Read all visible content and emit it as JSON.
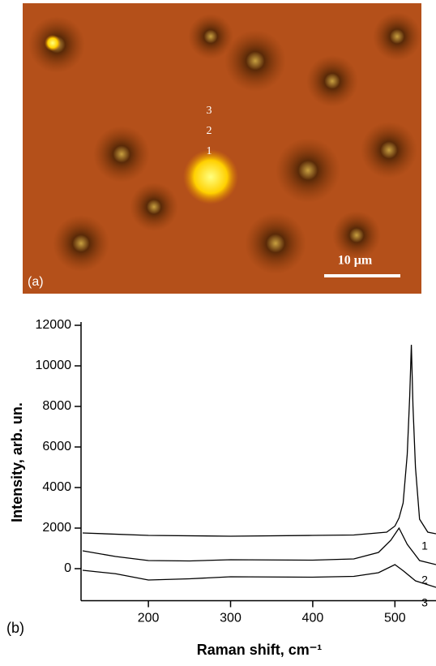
{
  "micrograph": {
    "panel_label": "(a)",
    "point_labels": [
      "3",
      "2",
      "1"
    ],
    "scale_bar": "10 μm"
  },
  "panel_label": "(b)",
  "chart_data": {
    "type": "line",
    "x_label": "Raman shift, cm⁻¹",
    "y_label": "Intensity, arb. un.",
    "xlim": [
      120,
      550
    ],
    "xticks": [
      200,
      300,
      400,
      500
    ],
    "ylim": [
      -1500,
      12000
    ],
    "yticks": [
      0,
      2000,
      4000,
      6000,
      8000,
      10000,
      12000
    ],
    "series": [
      {
        "name": "1",
        "color": "#000000",
        "x": [
          120,
          200,
          300,
          400,
          450,
          490,
          500,
          505,
          510,
          515,
          518,
          520,
          522,
          525,
          530,
          540,
          550
        ],
        "values": [
          1760,
          1640,
          1600,
          1640,
          1660,
          1800,
          2100,
          2500,
          3240,
          5640,
          8500,
          11040,
          8000,
          5000,
          2440,
          1800,
          1720
        ]
      },
      {
        "name": "2",
        "color": "#000000",
        "x": [
          120,
          160,
          200,
          250,
          300,
          400,
          450,
          480,
          495,
          505,
          515,
          530,
          550
        ],
        "values": [
          880,
          600,
          400,
          380,
          440,
          420,
          480,
          800,
          1400,
          2000,
          1200,
          400,
          200
        ]
      },
      {
        "name": "3",
        "color": "#000000",
        "x": [
          120,
          160,
          200,
          250,
          300,
          400,
          450,
          480,
          500,
          510,
          525,
          550
        ],
        "values": [
          -80,
          -250,
          -560,
          -500,
          -400,
          -420,
          -380,
          -200,
          200,
          -100,
          -600,
          -920
        ]
      }
    ]
  }
}
